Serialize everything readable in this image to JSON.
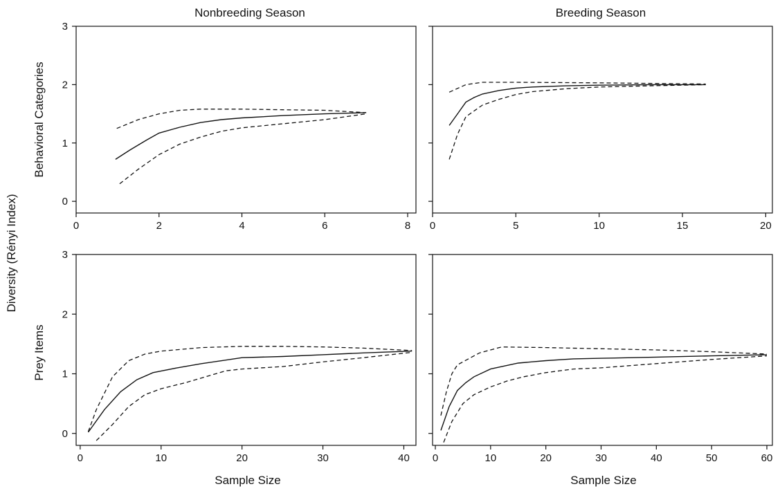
{
  "figure": {
    "ylabel": "Diversity (Rényi Index)",
    "column_titles": [
      "Nonbreeding Season",
      "Breeding Season"
    ],
    "row_labels": [
      "Behavioral Categories",
      "Prey Items"
    ],
    "xlabel": "Sample Size"
  },
  "chart_data": [
    {
      "type": "line",
      "panel": "top-left",
      "title": "Nonbreeding Season",
      "ylabel": "Behavioral Categories",
      "xlabel": "",
      "xlim": [
        0,
        8.2
      ],
      "ylim": [
        -0.2,
        3
      ],
      "xticks": [
        0,
        2,
        4,
        6,
        8
      ],
      "yticks": [
        0,
        1,
        2,
        3
      ],
      "series": [
        {
          "style": "solid",
          "x": [
            0.95,
            1.3,
            1.7,
            2.0,
            2.5,
            3.0,
            3.5,
            4.0,
            5.0,
            6.0,
            7.0
          ],
          "y": [
            0.72,
            0.88,
            1.05,
            1.17,
            1.27,
            1.35,
            1.4,
            1.43,
            1.47,
            1.5,
            1.52
          ]
        },
        {
          "style": "dashed",
          "x": [
            0.98,
            1.5,
            2.0,
            2.5,
            3.0,
            4.0,
            5.0,
            6.0,
            7.0
          ],
          "y": [
            1.25,
            1.4,
            1.5,
            1.56,
            1.58,
            1.58,
            1.57,
            1.56,
            1.52
          ]
        },
        {
          "style": "dashed",
          "x": [
            1.05,
            1.5,
            2.0,
            2.5,
            3.0,
            3.5,
            4.0,
            5.0,
            6.0,
            7.0
          ],
          "y": [
            0.3,
            0.55,
            0.8,
            0.98,
            1.1,
            1.2,
            1.26,
            1.33,
            1.4,
            1.5
          ]
        }
      ]
    },
    {
      "type": "line",
      "panel": "top-right",
      "title": "Breeding Season",
      "ylabel": "",
      "xlabel": "",
      "xlim": [
        0,
        20.4
      ],
      "ylim": [
        -0.2,
        3
      ],
      "xticks": [
        0,
        5,
        10,
        15,
        20
      ],
      "yticks": [
        0,
        1,
        2,
        3
      ],
      "series": [
        {
          "style": "solid",
          "x": [
            1.0,
            1.5,
            2.0,
            2.5,
            3.0,
            4.0,
            5.0,
            6.0,
            8.0,
            10.0,
            13.0,
            16.4
          ],
          "y": [
            1.3,
            1.5,
            1.7,
            1.78,
            1.84,
            1.9,
            1.94,
            1.96,
            1.98,
            1.99,
            2.0,
            2.0
          ]
        },
        {
          "style": "dashed",
          "x": [
            1.0,
            2.0,
            3.0,
            5.0,
            10.0,
            16.4
          ],
          "y": [
            1.87,
            2.0,
            2.04,
            2.04,
            2.03,
            2.01
          ]
        },
        {
          "style": "dashed",
          "x": [
            1.0,
            1.5,
            2.0,
            3.0,
            4.0,
            5.0,
            6.0,
            8.0,
            10.0,
            13.0,
            16.4
          ],
          "y": [
            0.72,
            1.15,
            1.45,
            1.65,
            1.75,
            1.83,
            1.88,
            1.93,
            1.96,
            1.98,
            2.0
          ]
        }
      ]
    },
    {
      "type": "line",
      "panel": "bottom-left",
      "title": "",
      "ylabel": "Prey Items",
      "xlabel": "Sample Size",
      "xlim": [
        -0.5,
        41.5
      ],
      "ylim": [
        -0.2,
        3
      ],
      "xticks": [
        0,
        10,
        20,
        30,
        40
      ],
      "yticks": [
        0,
        1,
        2,
        3
      ],
      "series": [
        {
          "style": "solid",
          "x": [
            1.0,
            3.0,
            5.0,
            7.0,
            9.0,
            12.0,
            15.0,
            18.0,
            20.0,
            25.0,
            30.0,
            35.0,
            41.0
          ],
          "y": [
            0.02,
            0.4,
            0.7,
            0.9,
            1.02,
            1.1,
            1.17,
            1.23,
            1.27,
            1.29,
            1.32,
            1.35,
            1.38
          ]
        },
        {
          "style": "dashed",
          "x": [
            1.0,
            2.0,
            4.0,
            6.0,
            8.0,
            10.0,
            15.0,
            20.0,
            25.0,
            30.0,
            35.0,
            41.0
          ],
          "y": [
            0.03,
            0.4,
            0.95,
            1.22,
            1.33,
            1.38,
            1.44,
            1.46,
            1.46,
            1.45,
            1.43,
            1.39
          ]
        },
        {
          "style": "dashed",
          "x": [
            2.0,
            4.0,
            6.0,
            8.0,
            10.0,
            13.0,
            16.0,
            18.0,
            20.0,
            25.0,
            30.0,
            35.0,
            41.0
          ],
          "y": [
            -0.12,
            0.15,
            0.45,
            0.65,
            0.75,
            0.85,
            0.97,
            1.05,
            1.08,
            1.12,
            1.2,
            1.27,
            1.36
          ]
        }
      ]
    },
    {
      "type": "line",
      "panel": "bottom-right",
      "title": "",
      "ylabel": "",
      "xlabel": "Sample Size",
      "xlim": [
        -0.5,
        61
      ],
      "ylim": [
        -0.2,
        3
      ],
      "xticks": [
        0,
        10,
        20,
        30,
        40,
        50,
        60
      ],
      "yticks": [
        0,
        1,
        2,
        3
      ],
      "series": [
        {
          "style": "solid",
          "x": [
            1.0,
            2.5,
            4.0,
            5.5,
            7.0,
            10.0,
            15.0,
            20.0,
            25.0,
            30.0,
            40.0,
            50.0,
            60.0
          ],
          "y": [
            0.05,
            0.45,
            0.72,
            0.85,
            0.95,
            1.08,
            1.18,
            1.22,
            1.25,
            1.26,
            1.28,
            1.3,
            1.32
          ]
        },
        {
          "style": "dashed",
          "x": [
            1.0,
            2.0,
            3.0,
            4.0,
            6.0,
            8.0,
            12.0,
            20.0,
            30.0,
            40.0,
            50.0,
            60.0
          ],
          "y": [
            0.3,
            0.7,
            1.0,
            1.15,
            1.25,
            1.35,
            1.45,
            1.44,
            1.42,
            1.4,
            1.37,
            1.33
          ]
        },
        {
          "style": "dashed",
          "x": [
            1.5,
            3.0,
            5.0,
            7.0,
            10.0,
            13.0,
            16.0,
            20.0,
            25.0,
            30.0,
            40.0,
            50.0,
            60.0
          ],
          "y": [
            -0.15,
            0.2,
            0.5,
            0.65,
            0.78,
            0.88,
            0.95,
            1.02,
            1.08,
            1.1,
            1.17,
            1.24,
            1.3
          ]
        }
      ]
    }
  ]
}
